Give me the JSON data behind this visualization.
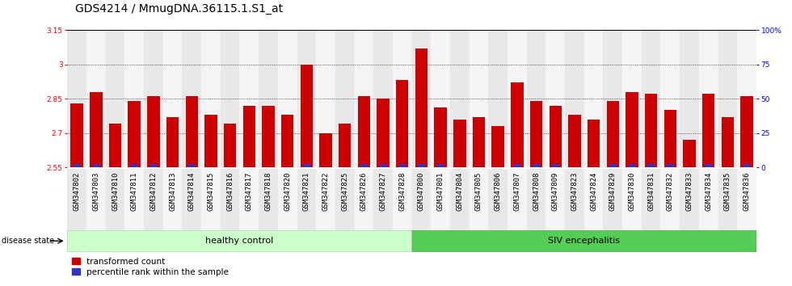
{
  "title": "GDS4214 / MmugDNA.36115.1.S1_at",
  "samples": [
    "GSM347802",
    "GSM347803",
    "GSM347810",
    "GSM347811",
    "GSM347812",
    "GSM347813",
    "GSM347814",
    "GSM347815",
    "GSM347816",
    "GSM347817",
    "GSM347818",
    "GSM347820",
    "GSM347821",
    "GSM347822",
    "GSM347825",
    "GSM347826",
    "GSM347827",
    "GSM347828",
    "GSM347800",
    "GSM347801",
    "GSM347804",
    "GSM347805",
    "GSM347806",
    "GSM347807",
    "GSM347808",
    "GSM347809",
    "GSM347823",
    "GSM347824",
    "GSM347829",
    "GSM347830",
    "GSM347831",
    "GSM347832",
    "GSM347833",
    "GSM347834",
    "GSM347835",
    "GSM347836"
  ],
  "red_values": [
    2.83,
    2.88,
    2.74,
    2.84,
    2.86,
    2.77,
    2.86,
    2.78,
    2.74,
    2.82,
    2.82,
    2.78,
    3.0,
    2.7,
    2.74,
    2.86,
    2.85,
    2.93,
    3.07,
    2.81,
    2.76,
    2.77,
    2.73,
    2.92,
    2.84,
    2.82,
    2.78,
    2.76,
    2.84,
    2.88,
    2.87,
    2.8,
    2.67,
    2.87,
    2.77,
    2.86
  ],
  "blue_values": [
    2,
    5,
    0,
    3,
    6,
    0,
    6,
    0,
    0,
    0,
    0,
    0,
    10,
    0,
    0,
    6,
    5,
    8,
    12,
    1,
    0,
    0,
    0,
    8,
    4,
    3,
    0,
    0,
    4,
    6,
    6,
    2,
    0,
    6,
    0,
    6
  ],
  "healthy_count": 18,
  "ylim_left": [
    2.55,
    3.15
  ],
  "ylim_right": [
    0,
    100
  ],
  "yticks_left": [
    2.55,
    2.7,
    2.85,
    3.0,
    3.15
  ],
  "yticks_right": [
    0,
    25,
    50,
    75,
    100
  ],
  "ytick_labels_left": [
    "2.55",
    "2.7",
    "2.85",
    "3",
    "3.15"
  ],
  "ytick_labels_right": [
    "0",
    "25",
    "50",
    "75",
    "100%"
  ],
  "bar_width": 0.65,
  "red_color": "#cc0000",
  "blue_color": "#3333cc",
  "healthy_color": "#ccffcc",
  "siv_color": "#55cc55",
  "healthy_label": "healthy control",
  "siv_label": "SIV encephalitis",
  "disease_state_label": "disease state",
  "legend_red": "transformed count",
  "legend_blue": "percentile rank within the sample",
  "title_fontsize": 10,
  "tick_fontsize": 6.5,
  "label_fontsize": 8
}
